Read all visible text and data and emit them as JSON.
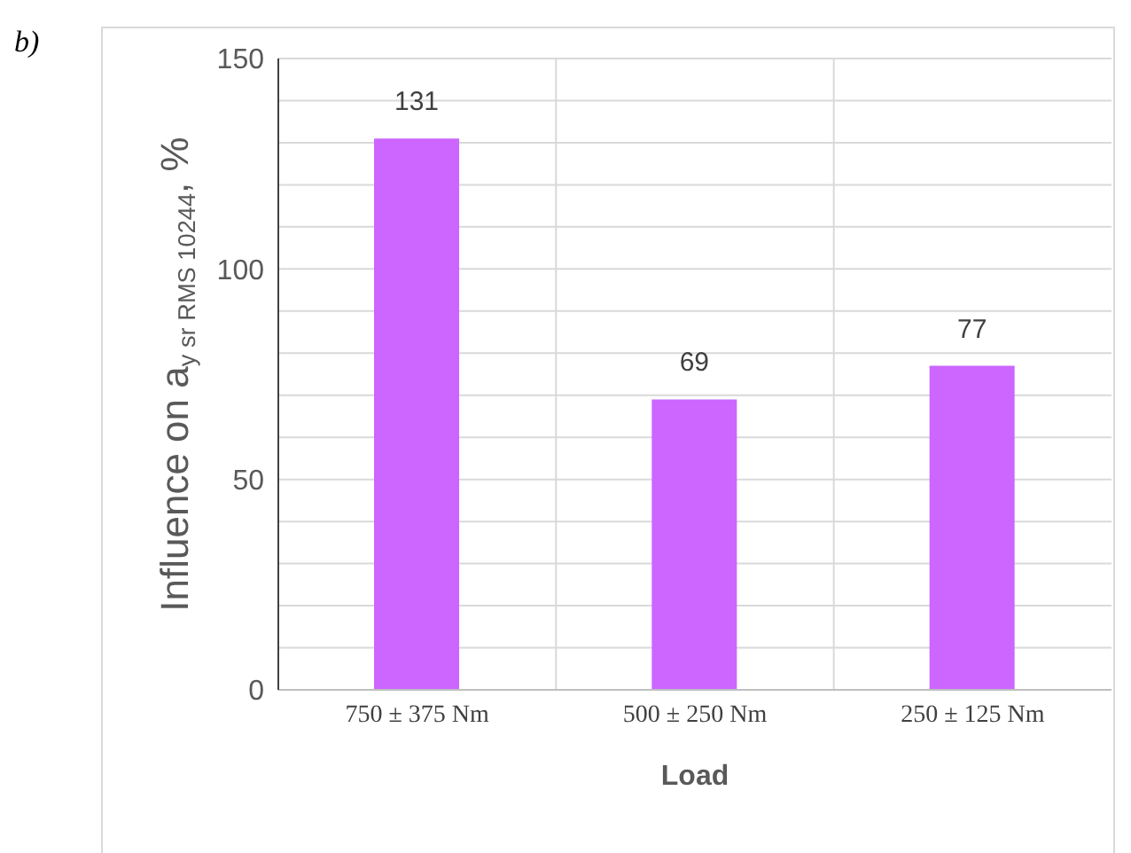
{
  "chart_data": {
    "type": "bar",
    "ylabel": "Influence on a$_{y sr RMS 10244}$, %",
    "xlabel": "Load",
    "annotations": [
      "b)"
    ],
    "categories": [
      "750 ± 375 Nm",
      "500 ± 250 Nm",
      "250 ± 125 Nm"
    ],
    "values": [
      131,
      69,
      77
    ],
    "color": "#cc66ff",
    "data_labels": true,
    "ylim": [
      0,
      150
    ],
    "yticks": [
      0,
      {
        "value": 10,
        "label": null
      },
      {
        "value": 20,
        "label": null
      },
      {
        "value": 30,
        "label": null
      },
      {
        "value": 40,
        "label": null
      },
      50,
      {
        "value": 60,
        "label": null
      },
      {
        "value": 70,
        "label": null
      },
      {
        "value": 80,
        "label": null
      },
      {
        "value": 90,
        "label": null
      },
      100,
      {
        "value": 110,
        "label": null
      },
      {
        "value": 120,
        "label": null
      },
      {
        "value": 130,
        "label": null
      },
      {
        "value": 140,
        "label": null
      },
      150
    ],
    "grid": true
  }
}
